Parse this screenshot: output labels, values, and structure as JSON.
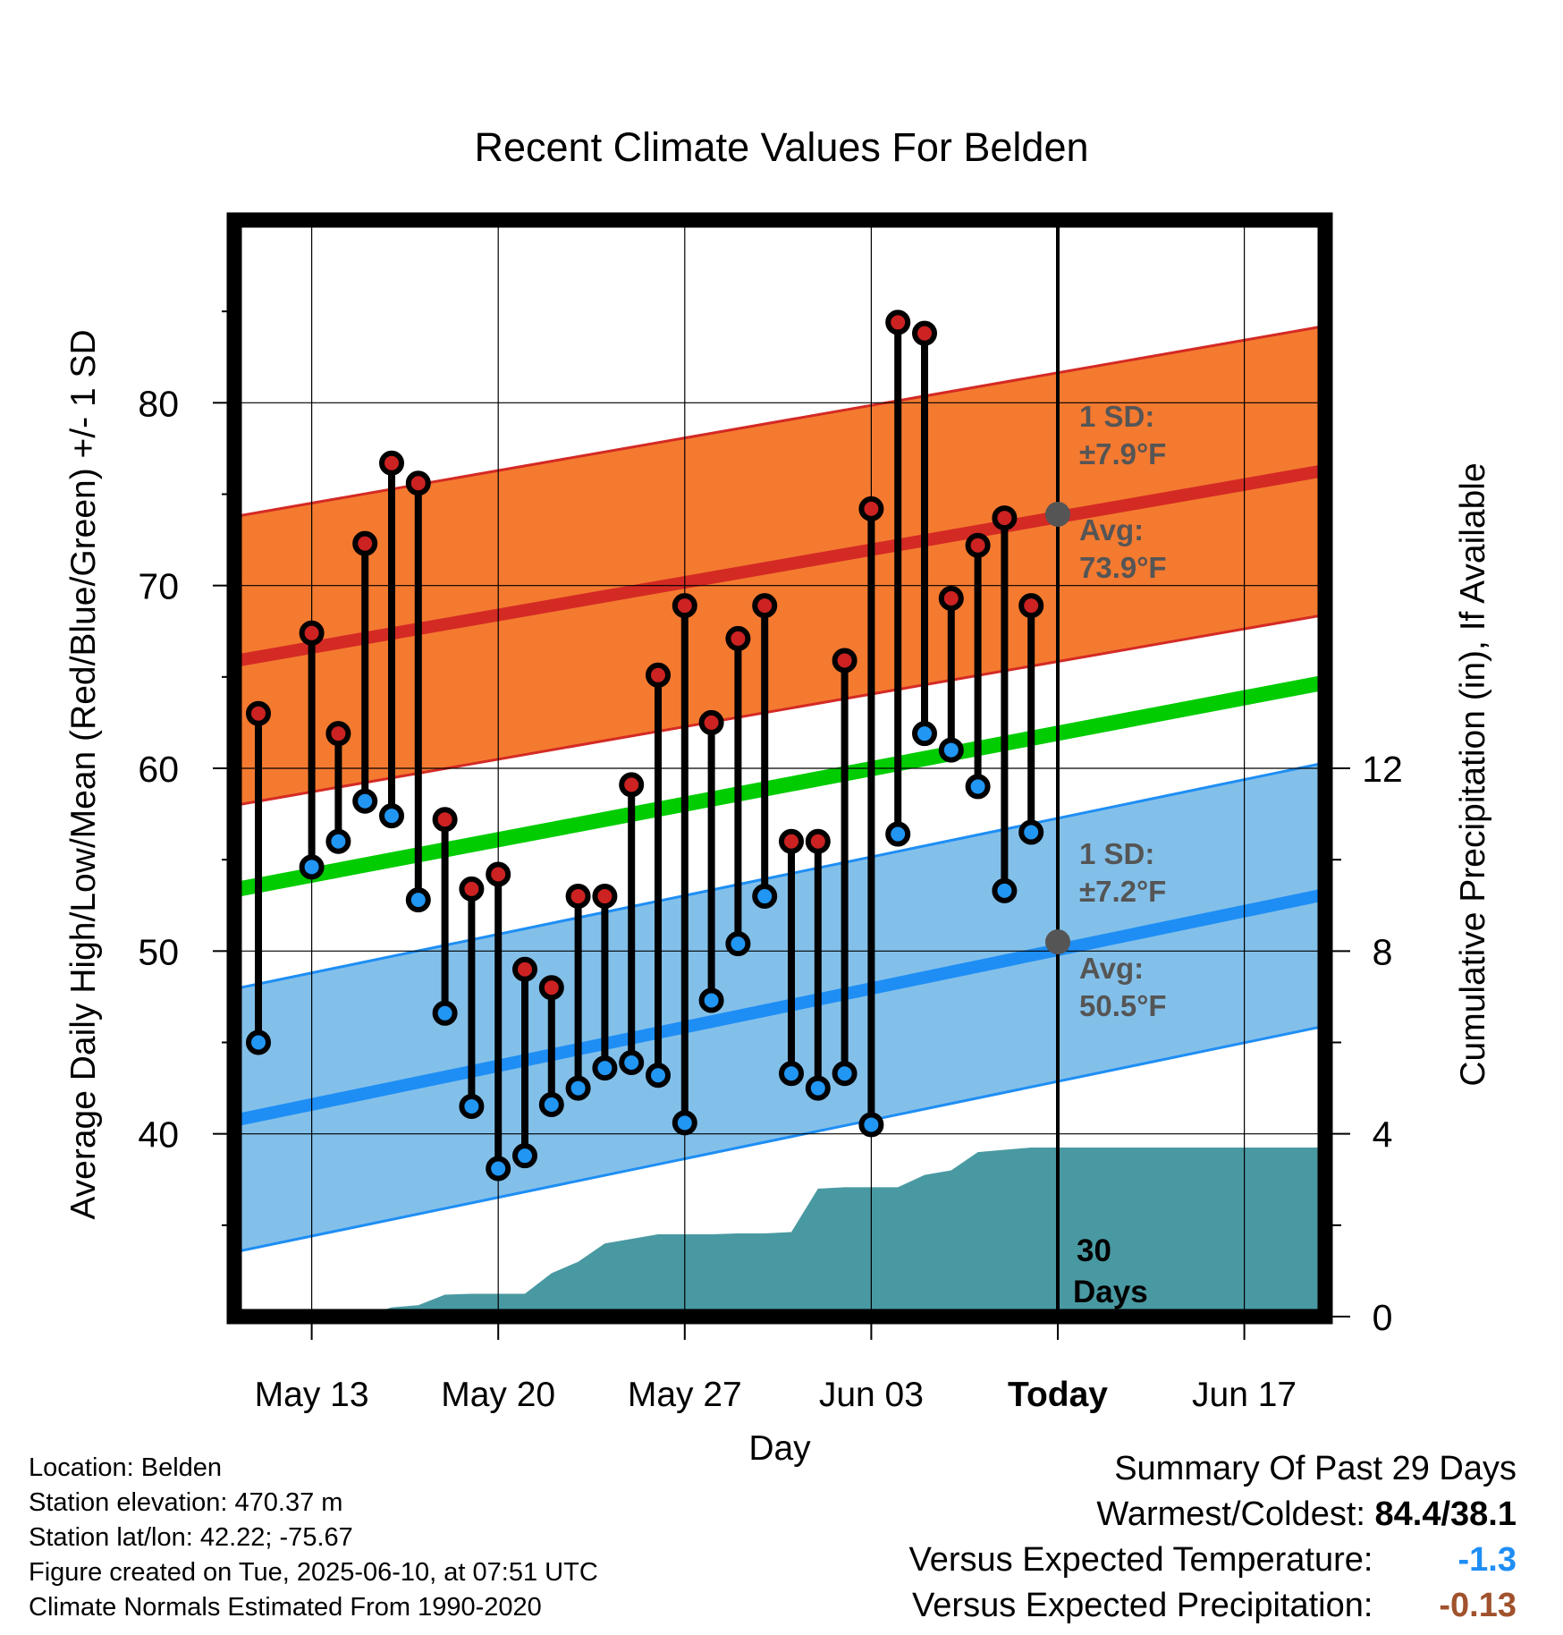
{
  "chart_data": {
    "type": "line",
    "title": "Recent Climate Values For Belden",
    "xlabel": "Day",
    "ylabel": "Average Daily High/Low/Mean (Red/Blue/Green) +/- 1 SD",
    "y2label": "Cumulative Precipitation (in), If Available",
    "ylim": [
      30,
      90
    ],
    "y2lim": [
      0,
      24
    ],
    "x_tick_labels": [
      "May 13",
      "May 20",
      "May 27",
      "Jun 03",
      "Today",
      "Jun 17"
    ],
    "y_ticks": [
      40,
      50,
      60,
      70,
      80
    ],
    "y2_ticks": [
      0,
      4,
      8,
      12
    ],
    "today_label": "30 Days",
    "dates": [
      "May 11",
      "May 12",
      "May 13",
      "May 14",
      "May 15",
      "May 16",
      "May 17",
      "May 18",
      "May 19",
      "May 20",
      "May 21",
      "May 22",
      "May 23",
      "May 24",
      "May 25",
      "May 26",
      "May 27",
      "May 28",
      "May 29",
      "May 30",
      "May 31",
      "Jun 01",
      "Jun 02",
      "Jun 03",
      "Jun 04",
      "Jun 05",
      "Jun 06",
      "Jun 07",
      "Jun 08",
      "Jun 09",
      "Jun 10"
    ],
    "observed_high": [
      63.0,
      null,
      67.4,
      61.9,
      72.3,
      76.7,
      75.6,
      57.2,
      53.4,
      54.2,
      49.0,
      48.0,
      53.0,
      53.0,
      59.1,
      65.1,
      68.9,
      62.5,
      67.1,
      68.9,
      56.0,
      56.0,
      65.9,
      74.2,
      84.4,
      83.8,
      69.3,
      72.2,
      73.7,
      68.9,
      null
    ],
    "observed_low": [
      45.0,
      null,
      54.6,
      56.0,
      58.2,
      57.4,
      52.8,
      46.6,
      41.5,
      38.1,
      38.8,
      41.6,
      42.5,
      43.6,
      43.9,
      43.2,
      40.6,
      47.3,
      50.4,
      53.0,
      43.3,
      42.5,
      43.3,
      40.5,
      56.4,
      61.9,
      61.0,
      59.0,
      53.3,
      56.5,
      null
    ],
    "normal_high": {
      "start": 66.1,
      "end": 76.3
    },
    "normal_low": {
      "start": 41.0,
      "end": 53.1
    },
    "normal_mean": {
      "start": 53.6,
      "end": 64.7
    },
    "sd_high": 7.9,
    "sd_low": 7.2,
    "today_avg_high": 73.9,
    "today_avg_low": 50.5,
    "precip_cumulative": [
      0,
      0,
      0,
      0,
      0.02,
      0.2,
      0.25,
      0.48,
      0.5,
      0.5,
      0.5,
      0.95,
      1.2,
      1.6,
      1.7,
      1.8,
      1.8,
      1.8,
      1.82,
      1.82,
      1.85,
      2.8,
      2.83,
      2.83,
      2.83,
      3.1,
      3.2,
      3.6,
      3.65,
      3.7,
      3.7
    ],
    "annotations": {
      "high_sd": [
        "1 SD:",
        "±7.9°F"
      ],
      "high_avg": [
        "Avg:",
        "73.9°F"
      ],
      "low_sd": [
        "1 SD:",
        "±7.2°F"
      ],
      "low_avg": [
        "Avg:",
        "50.5°F"
      ]
    },
    "colors": {
      "high_band": "#f47a30",
      "high_line": "#d42a24",
      "low_band": "#83c0e9",
      "low_line": "#1e8ef5",
      "mean_line": "#00cc00",
      "precip": "#4999a2",
      "high_dot": "#cc2222",
      "low_dot": "#2196f3",
      "annotation": "#555555"
    }
  },
  "footer": {
    "location": "Location: Belden",
    "elevation": "Station elevation: 470.37 m",
    "latlon": "Station lat/lon: 42.22; -75.67",
    "created": "Figure created on Tue, 2025-06-10, at 07:51 UTC",
    "normals": "Climate Normals Estimated From 1990-2020"
  },
  "summary": {
    "title": "Summary Of Past 29 Days",
    "warmest_label": "Warmest/Coldest:",
    "warmest_value": "84.4/38.1",
    "temp_label": "Versus Expected Temperature:",
    "temp_value": "-1.3",
    "temp_color": "#1e8ef5",
    "precip_label": "Versus Expected Precipitation:",
    "precip_value": "-0.13",
    "precip_color": "#a0522d"
  }
}
